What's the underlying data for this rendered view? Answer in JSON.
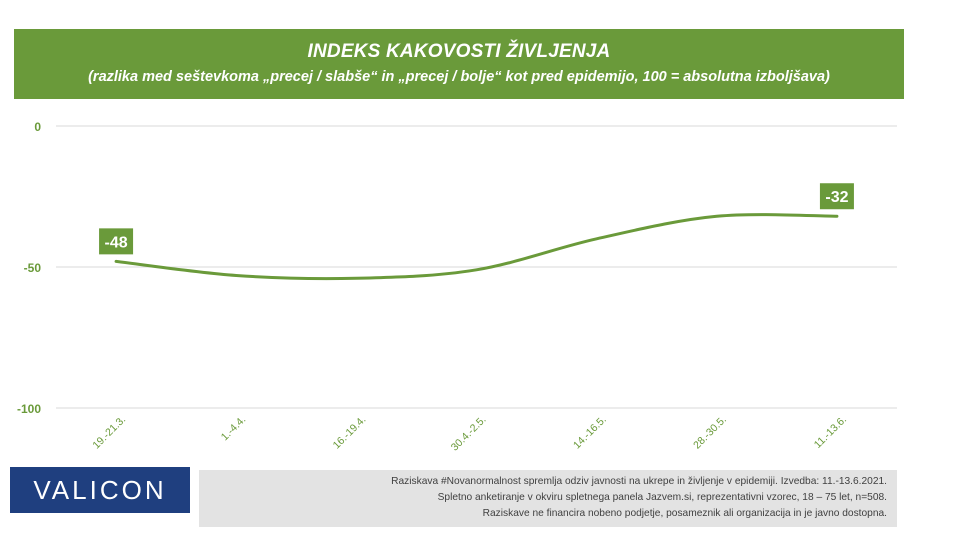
{
  "header": {
    "title": "INDEKS KAKOVOSTI ŽIVLJENJA",
    "subtitle": "(razlika med seštevkoma „precej / slabše“ in „precej / bolje“ kot pred epidemijo, 100 = absolutna izboljšava)"
  },
  "chart_data": {
    "type": "line",
    "title": "INDEKS KAKOVOSTI ŽIVLJENJA",
    "subtitle": "(razlika med seštevkoma „precej / slabše“ in „precej / bolje“ kot pred epidemijo, 100 = absolutna izboljšava)",
    "categories": [
      "19.-21.3.",
      "1.-4.4.",
      "16.-19.4.",
      "30.4.-2.5.",
      "14.-16.5.",
      "28.-30.5.",
      "11.-13.6."
    ],
    "series": [
      {
        "values": [
          -48,
          -53,
          -54,
          -51,
          -40,
          -32,
          -32
        ]
      }
    ],
    "data_labels": [
      {
        "index": 0,
        "text": "-48"
      },
      {
        "index": 6,
        "text": "-32"
      }
    ],
    "yticks": [
      0,
      -50,
      -100
    ],
    "ylim": [
      -100,
      0
    ],
    "grid": true,
    "colors": {
      "line": "#6a9a3a",
      "label_bg": "#6a9a3a",
      "grid": "#d9d9d9",
      "tick_text": "#6a9a3a"
    }
  },
  "logo": {
    "text": "VALICON"
  },
  "footnote": {
    "lines": [
      "Raziskava #Novanormalnost spremlja odziv javnosti na ukrepe in življenje v epidemiji. Izvedba: 11.-13.6.2021.",
      "Spletno anketiranje v okviru spletnega panela Jazvem.si, reprezentativni vzorec, 18 – 75 let, n=508.",
      "Raziskave ne financira nobeno podjetje, posameznik ali organizacija in je javno dostopna."
    ]
  }
}
